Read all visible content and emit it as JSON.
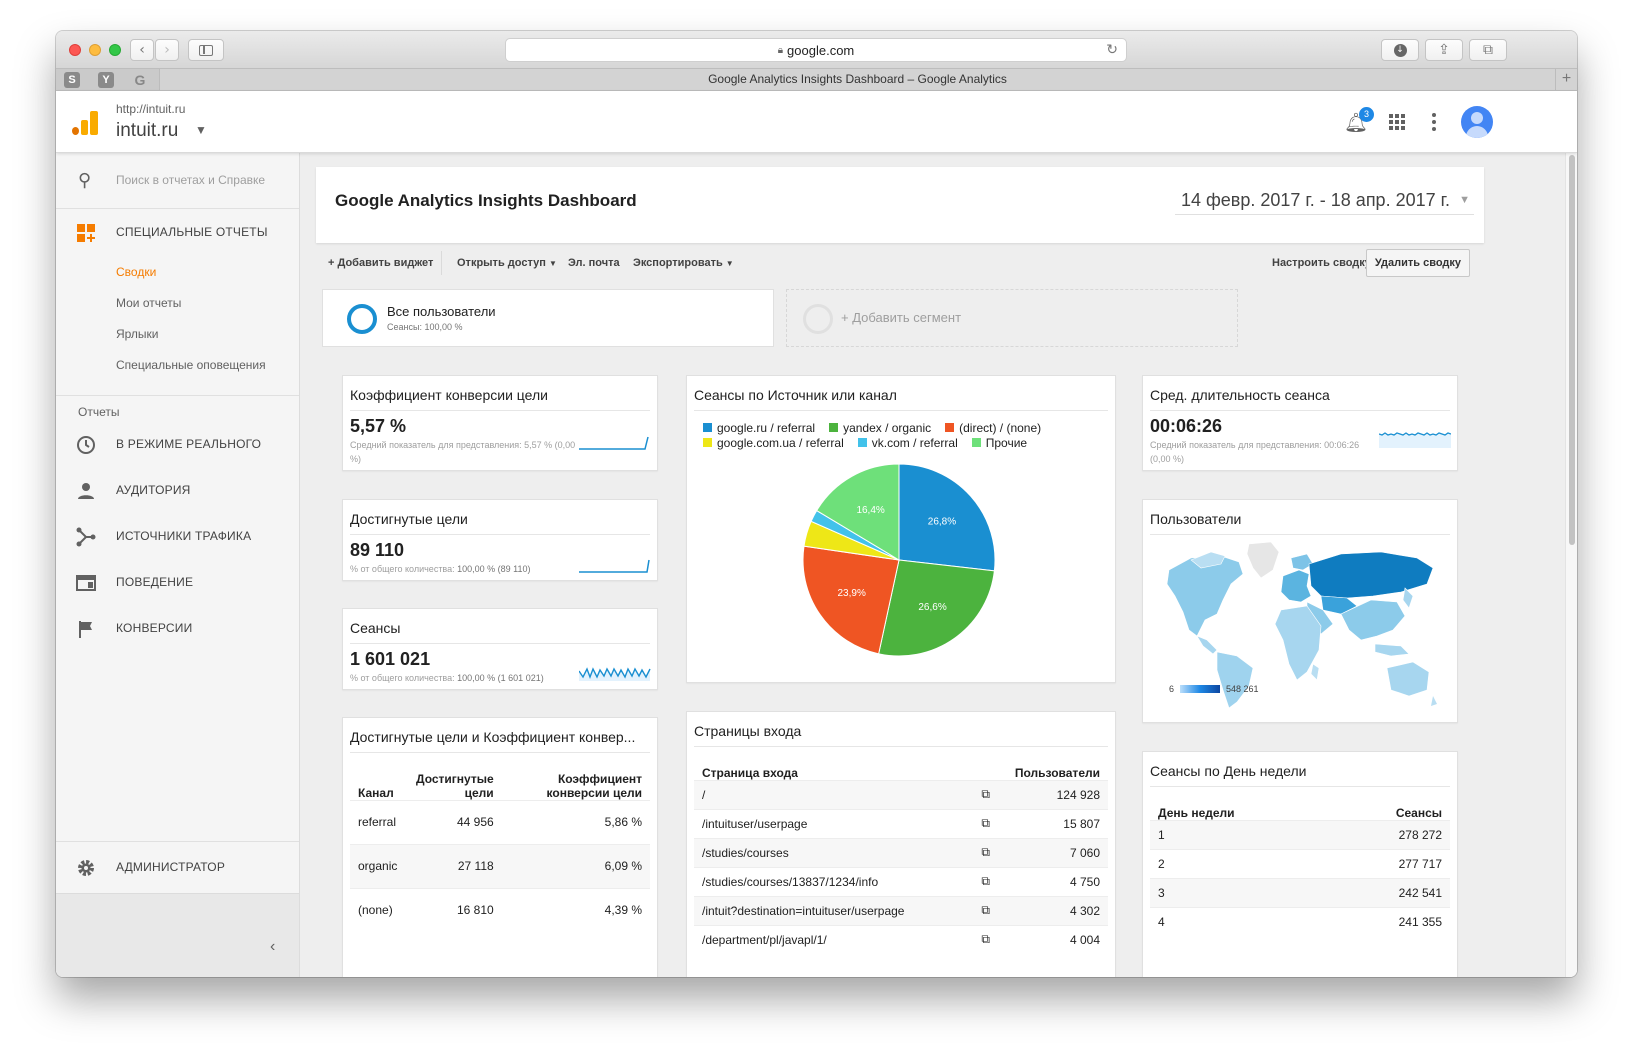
{
  "browser": {
    "address": "google.com",
    "tab_title": "Google Analytics Insights Dashboard – Google Analytics",
    "favicons": [
      "S",
      "Y",
      "G"
    ]
  },
  "header": {
    "property_url": "http://intuit.ru",
    "property_name": "intuit.ru",
    "notifications_count": "3"
  },
  "sidebar": {
    "search_placeholder": "Поиск в отчетах и Справке",
    "custom_reports": "СПЕЦИАЛЬНЫЕ ОТЧЕТЫ",
    "sub_items": [
      "Сводки",
      "Мои отчеты",
      "Ярлыки",
      "Специальные оповещения"
    ],
    "reports_section": "Отчеты",
    "report_items": [
      "В РЕЖИМЕ РЕАЛЬНОГО",
      "АУДИТОРИЯ",
      "ИСТОЧНИКИ ТРАФИКА",
      "ПОВЕДЕНИЕ",
      "КОНВЕРСИИ"
    ],
    "admin": "АДМИНИСТРАТОР"
  },
  "dashboard": {
    "title": "Google Analytics Insights Dashboard",
    "date_range": "14 февр. 2017 г. - 18 апр. 2017 г.",
    "toolbar": {
      "add_widget": "+ Добавить виджет",
      "share": "Открыть доступ",
      "email": "Эл. почта",
      "export": "Экспортировать",
      "customize": "Настроить сводку",
      "delete": "Удалить сводку"
    },
    "segments": {
      "active_name": "Все пользователи",
      "active_sub": "Сеансы: 100,00 %",
      "add": "+ Добавить сегмент"
    }
  },
  "widgets": {
    "conversion": {
      "title": "Коэффициент конверсии цели",
      "value": "5,57 %",
      "note": "Средний показатель для представления: 5,57 % (0,00 %)"
    },
    "goals": {
      "title": "Достигнутые цели",
      "value": "89 110",
      "note_prefix": "% от общего количества:",
      "note_value": "100,00 % (89 110)"
    },
    "sessions": {
      "title": "Сеансы",
      "value": "1 601 021",
      "note_prefix": "% от общего количества:",
      "note_value": "100,00 % (1 601 021)"
    },
    "avg_duration": {
      "title": "Сред. длительность сеанса",
      "value": "00:06:26",
      "note": "Средний показатель для представления: 00:06:26 (0,00 %)"
    },
    "sources_pie": {
      "title": "Сеансы по Источник или канал"
    },
    "users_map": {
      "title": "Пользователи",
      "scale_min": "6",
      "scale_max": "548 261"
    },
    "channel_table": {
      "title": "Достигнутые цели и Коэффициент конвер...",
      "headers": [
        "Канал",
        "Достигнутые цели",
        "Коэффициент конверсии цели"
      ],
      "rows": [
        [
          "referral",
          "44 956",
          "5,86 %"
        ],
        [
          "organic",
          "27 118",
          "6,09 %"
        ],
        [
          "(none)",
          "16 810",
          "4,39 %"
        ]
      ]
    },
    "landing_pages": {
      "title": "Страницы входа",
      "headers": [
        "Страница входа",
        "Пользователи"
      ],
      "rows": [
        [
          "/",
          "124 928"
        ],
        [
          "/intuituser/userpage",
          "15 807"
        ],
        [
          "/studies/courses",
          "7 060"
        ],
        [
          "/studies/courses/13837/1234/info",
          "4 750"
        ],
        [
          "/intuit?destination=intuituser/userpage",
          "4 302"
        ],
        [
          "/department/pl/javapl/1/",
          "4 004"
        ]
      ]
    },
    "weekday": {
      "title": "Сеансы по День недели",
      "headers": [
        "День недели",
        "Сеансы"
      ],
      "rows": [
        [
          "1",
          "278 272"
        ],
        [
          "2",
          "277 717"
        ],
        [
          "3",
          "242 541"
        ],
        [
          "4",
          "241 355"
        ]
      ]
    }
  },
  "chart_data": {
    "type": "pie",
    "series": [
      {
        "name": "google.ru / referral",
        "value": 26.8,
        "color": "#1a8fd1"
      },
      {
        "name": "yandex / organic",
        "value": 26.6,
        "color": "#4cb33e"
      },
      {
        "name": "(direct) / (none)",
        "value": 23.9,
        "color": "#ef5523"
      },
      {
        "name": "google.com.ua / referral",
        "value": 4.3,
        "color": "#eee717"
      },
      {
        "name": "vk.com / referral",
        "value": 2.0,
        "color": "#42c2ea"
      },
      {
        "name": "Прочие",
        "value": 16.4,
        "color": "#6ee07a"
      }
    ],
    "slice_labels": [
      "26,8%",
      "26,6%",
      "23,9%",
      "",
      "",
      "16,4%"
    ]
  }
}
